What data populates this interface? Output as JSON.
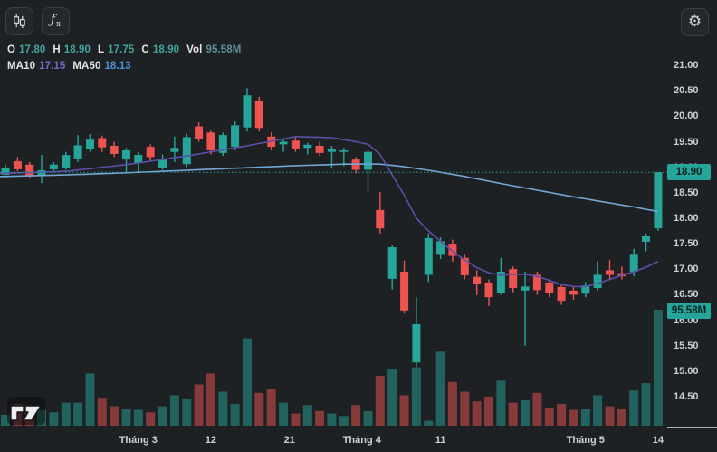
{
  "toolbar": {
    "fx_f": "ƒ",
    "fx_sub": "x",
    "gear_glyph": "⚙"
  },
  "legend": {
    "o_label": "O",
    "o_value": "17.80",
    "h_label": "H",
    "h_value": "18.90",
    "l_label": "L",
    "l_value": "17.75",
    "c_label": "C",
    "c_value": "18.90",
    "vol_label": "Vol",
    "vol_value": "95.58M",
    "ma10_label": "MA10",
    "ma10_value": "17.15",
    "ma50_label": "MA50",
    "ma50_value": "18.13"
  },
  "price_axis": {
    "last_price_badge": "18.90",
    "volume_badge": "95.58M",
    "tick_labels": [
      "21.00",
      "20.50",
      "20.00",
      "19.50",
      "19.00",
      "18.50",
      "18.00",
      "17.50",
      "17.00",
      "16.50",
      "16.00",
      "15.50",
      "15.00",
      "14.50"
    ]
  },
  "time_axis": {
    "ticks": [
      {
        "label": "Tháng 3",
        "i": 11
      },
      {
        "label": "12",
        "i": 17
      },
      {
        "label": "21",
        "i": 23.5
      },
      {
        "label": "Tháng 4",
        "i": 29.5
      },
      {
        "label": "11",
        "i": 36
      },
      {
        "label": "Tháng 5",
        "i": 48
      },
      {
        "label": "14",
        "i": 54
      }
    ]
  },
  "colors": {
    "background": "#1e2124",
    "up": "#26a69a",
    "down": "#ef5350",
    "volume_up": "rgba(38,166,154,0.5)",
    "volume_down": "rgba(239,83,80,0.5)",
    "ma10": "#5d4fa8",
    "ma50": "#74a6d4",
    "price_line": "#26a69a",
    "axis_text": "#cdd1d8"
  },
  "chart_data": {
    "type": "candlestick",
    "price_range": [
      14.5,
      21.0
    ],
    "price_tick_step": 0.5,
    "price_line": 18.9,
    "max_volume_m": 95.58,
    "candles_ohlcv": [
      [
        18.85,
        19.05,
        18.78,
        18.98,
        9
      ],
      [
        19.12,
        19.2,
        18.92,
        18.96,
        18
      ],
      [
        19.05,
        19.1,
        18.78,
        18.82,
        17
      ],
      [
        18.83,
        19.24,
        18.69,
        18.94,
        13
      ],
      [
        18.96,
        19.1,
        18.9,
        19.05,
        11
      ],
      [
        18.99,
        19.3,
        18.95,
        19.24,
        19
      ],
      [
        19.17,
        19.63,
        19.1,
        19.43,
        19
      ],
      [
        19.36,
        19.65,
        19.3,
        19.54,
        43
      ],
      [
        19.57,
        19.62,
        19.3,
        19.39,
        23
      ],
      [
        19.42,
        19.5,
        19.2,
        19.26,
        16
      ],
      [
        19.15,
        19.38,
        18.9,
        19.33,
        14
      ],
      [
        19.08,
        19.3,
        18.91,
        19.24,
        13
      ],
      [
        19.4,
        19.45,
        19.12,
        19.2,
        11
      ],
      [
        18.99,
        19.25,
        18.95,
        19.17,
        16
      ],
      [
        19.3,
        19.6,
        19.1,
        19.38,
        25
      ],
      [
        19.06,
        19.65,
        19.0,
        19.59,
        22
      ],
      [
        19.8,
        19.88,
        19.5,
        19.56,
        34
      ],
      [
        19.68,
        19.72,
        19.25,
        19.33,
        43
      ],
      [
        19.28,
        19.68,
        19.22,
        19.63,
        28
      ],
      [
        19.4,
        19.9,
        19.33,
        19.82,
        18
      ],
      [
        19.78,
        20.55,
        19.7,
        20.41,
        72
      ],
      [
        20.31,
        20.38,
        19.7,
        19.77,
        27
      ],
      [
        19.6,
        19.68,
        19.33,
        19.4,
        30
      ],
      [
        19.45,
        19.55,
        19.3,
        19.5,
        19
      ],
      [
        19.52,
        19.58,
        19.3,
        19.35,
        10
      ],
      [
        19.38,
        19.48,
        19.25,
        19.44,
        17
      ],
      [
        19.42,
        19.5,
        19.22,
        19.28,
        12
      ],
      [
        19.3,
        19.42,
        18.98,
        19.35,
        10
      ],
      [
        19.3,
        19.38,
        19.02,
        19.33,
        8
      ],
      [
        19.15,
        19.2,
        18.88,
        18.95,
        17
      ],
      [
        18.95,
        19.35,
        18.51,
        19.3,
        12
      ],
      [
        18.16,
        18.51,
        17.7,
        17.8,
        41
      ],
      [
        16.81,
        17.48,
        16.6,
        17.43,
        47
      ],
      [
        16.95,
        17.17,
        16.15,
        16.19,
        25
      ],
      [
        15.17,
        16.45,
        15.08,
        15.92,
        48
      ],
      [
        16.89,
        17.7,
        16.75,
        17.61,
        4
      ],
      [
        17.3,
        17.62,
        17.2,
        17.55,
        61
      ],
      [
        17.5,
        17.58,
        17.15,
        17.26,
        36
      ],
      [
        17.22,
        17.3,
        16.8,
        16.88,
        28
      ],
      [
        16.85,
        16.98,
        16.49,
        16.72,
        20
      ],
      [
        16.74,
        16.8,
        16.28,
        16.45,
        24
      ],
      [
        16.54,
        17.22,
        16.5,
        16.95,
        37
      ],
      [
        17.0,
        17.05,
        16.55,
        16.63,
        19
      ],
      [
        16.58,
        16.95,
        15.5,
        16.66,
        21
      ],
      [
        16.89,
        16.95,
        16.5,
        16.59,
        27
      ],
      [
        16.74,
        16.8,
        16.45,
        16.54,
        15
      ],
      [
        16.65,
        16.7,
        16.3,
        16.38,
        18
      ],
      [
        16.58,
        16.65,
        16.4,
        16.5,
        13
      ],
      [
        16.52,
        16.75,
        16.45,
        16.68,
        14
      ],
      [
        16.63,
        17.15,
        16.58,
        16.89,
        25
      ],
      [
        16.98,
        17.18,
        16.8,
        16.89,
        16
      ],
      [
        16.92,
        17.05,
        16.8,
        16.86,
        14
      ],
      [
        16.95,
        17.4,
        16.86,
        17.3,
        29
      ],
      [
        17.54,
        17.7,
        17.35,
        17.66,
        35
      ],
      [
        17.8,
        18.9,
        17.75,
        18.9,
        95.58
      ]
    ],
    "ma10_points": [
      [
        0,
        18.88
      ],
      [
        5,
        18.92
      ],
      [
        10,
        19.05
      ],
      [
        15,
        19.22
      ],
      [
        20,
        19.42
      ],
      [
        24,
        19.6
      ],
      [
        27,
        19.58
      ],
      [
        29,
        19.5
      ],
      [
        30,
        19.45
      ],
      [
        31,
        19.25
      ],
      [
        32,
        18.85
      ],
      [
        33,
        18.45
      ],
      [
        34,
        18.0
      ],
      [
        35,
        17.75
      ],
      [
        36,
        17.55
      ],
      [
        37,
        17.35
      ],
      [
        38,
        17.18
      ],
      [
        39,
        17.03
      ],
      [
        40,
        16.93
      ],
      [
        41,
        16.88
      ],
      [
        42,
        16.9
      ],
      [
        43,
        16.9
      ],
      [
        44,
        16.86
      ],
      [
        45,
        16.78
      ],
      [
        46,
        16.7
      ],
      [
        47,
        16.66
      ],
      [
        48,
        16.66
      ],
      [
        49,
        16.72
      ],
      [
        50,
        16.8
      ],
      [
        51,
        16.88
      ],
      [
        52,
        16.95
      ],
      [
        53,
        17.04
      ],
      [
        54,
        17.15
      ]
    ],
    "ma50_points": [
      [
        0,
        18.82
      ],
      [
        5,
        18.85
      ],
      [
        10,
        18.89
      ],
      [
        15,
        18.94
      ],
      [
        20,
        18.99
      ],
      [
        24,
        19.03
      ],
      [
        28,
        19.06
      ],
      [
        31,
        19.06
      ],
      [
        33,
        19.01
      ],
      [
        35,
        18.94
      ],
      [
        38,
        18.82
      ],
      [
        41,
        18.68
      ],
      [
        44,
        18.55
      ],
      [
        47,
        18.42
      ],
      [
        50,
        18.3
      ],
      [
        52,
        18.22
      ],
      [
        54,
        18.13
      ]
    ]
  }
}
